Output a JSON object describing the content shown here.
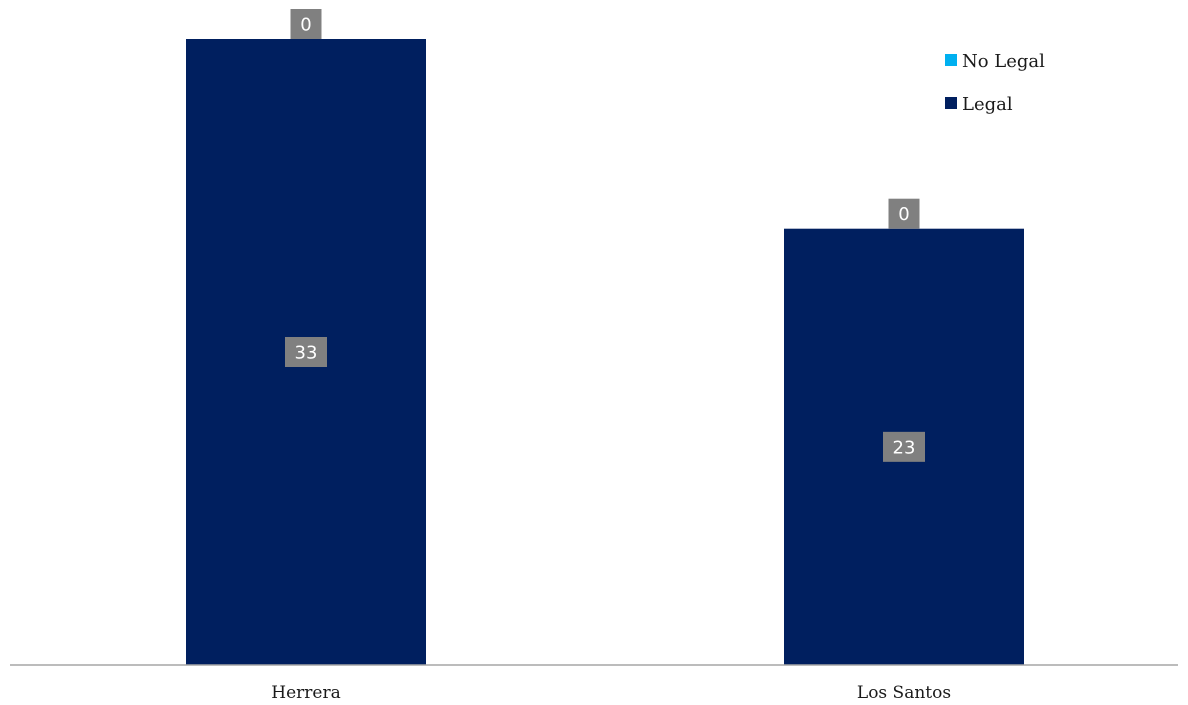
{
  "chart_data": {
    "type": "bar",
    "stacked": true,
    "categories": [
      "Herrera",
      "Los Santos"
    ],
    "series": [
      {
        "name": "Legal",
        "values": [
          33,
          23
        ],
        "color": "#001F5F"
      },
      {
        "name": "No Legal",
        "values": [
          0,
          0
        ],
        "color": "#00B0F0"
      }
    ],
    "legend": {
      "position": "top-right",
      "items": [
        "No Legal",
        "Legal"
      ]
    },
    "data_label_color": "#808080",
    "axis_line_color": "#A6A6A6",
    "grid": false
  }
}
